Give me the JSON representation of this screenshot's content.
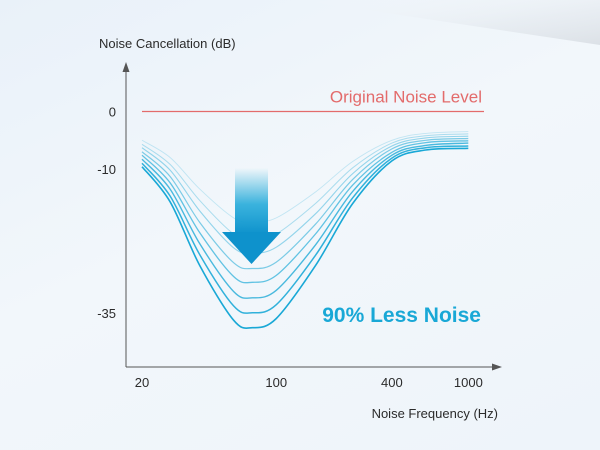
{
  "chart_data": {
    "type": "line",
    "ylabel": "Noise Cancellation (dB)",
    "xlabel": "Noise Frequency (Hz)",
    "x_scale": "log",
    "xlim": [
      20,
      1150
    ],
    "x_ticks": [
      20,
      100,
      400,
      1000
    ],
    "x_tick_labels": [
      "20",
      "100",
      "400",
      "1000"
    ],
    "ylim": [
      -42,
      6
    ],
    "y_ticks": [
      0,
      -10,
      -35
    ],
    "y_tick_labels": [
      "0",
      "-10",
      "-35"
    ],
    "grid": false,
    "legend": "none",
    "reference_line": {
      "label": "Original Noise Level",
      "y": 0,
      "color": "#e36b6b"
    },
    "series_color": "#19a8d6",
    "series": [
      {
        "x": [
          20,
          28,
          40,
          60,
          75,
          100,
          160,
          250,
          400,
          600,
          1000
        ],
        "y": [
          -5,
          -8,
          -13.5,
          -18.5,
          -19.2,
          -18.5,
          -14,
          -8.7,
          -5,
          -3.8,
          -3.5
        ]
      },
      {
        "x": [
          20,
          28,
          40,
          60,
          75,
          100,
          160,
          250,
          400,
          600,
          1000
        ],
        "y": [
          -5.7,
          -9.2,
          -15.5,
          -21.3,
          -22.1,
          -21.3,
          -16,
          -9.8,
          -5.5,
          -4.2,
          -3.9
        ]
      },
      {
        "x": [
          20,
          28,
          40,
          60,
          75,
          100,
          160,
          250,
          400,
          600,
          1000
        ],
        "y": [
          -6.3,
          -10.2,
          -17.3,
          -23.7,
          -24.6,
          -23.6,
          -17.8,
          -10.8,
          -6,
          -4.6,
          -4.3
        ]
      },
      {
        "x": [
          20,
          28,
          40,
          60,
          75,
          100,
          160,
          250,
          400,
          600,
          1000
        ],
        "y": [
          -7,
          -11.3,
          -19.3,
          -26.3,
          -27.3,
          -26.2,
          -19.6,
          -11.8,
          -6.5,
          -5,
          -4.7
        ]
      },
      {
        "x": [
          20,
          28,
          40,
          60,
          75,
          100,
          160,
          250,
          400,
          600,
          1000
        ],
        "y": [
          -7.6,
          -12.4,
          -21.1,
          -28.7,
          -29.7,
          -28.5,
          -21.3,
          -12.8,
          -7.1,
          -5.4,
          -5.1
        ]
      },
      {
        "x": [
          20,
          28,
          40,
          60,
          75,
          100,
          160,
          250,
          400,
          600,
          1000
        ],
        "y": [
          -8.3,
          -13.5,
          -23,
          -31.3,
          -32.4,
          -31.1,
          -23.2,
          -13.9,
          -7.6,
          -5.9,
          -5.5
        ]
      },
      {
        "x": [
          20,
          28,
          40,
          60,
          75,
          100,
          160,
          250,
          400,
          600,
          1000
        ],
        "y": [
          -9,
          -14.7,
          -24.9,
          -33.8,
          -35,
          -33.6,
          -25,
          -15,
          -8.1,
          -6.3,
          -6
        ]
      },
      {
        "x": [
          20,
          28,
          40,
          60,
          75,
          100,
          160,
          250,
          400,
          600,
          1000
        ],
        "y": [
          -9.6,
          -15.7,
          -26.8,
          -36.3,
          -37.6,
          -36,
          -26.8,
          -16,
          -8.6,
          -6.7,
          -6.4
        ]
      }
    ],
    "annotations": [
      {
        "text": "90% Less Noise",
        "color": "#19a8d6"
      }
    ]
  }
}
